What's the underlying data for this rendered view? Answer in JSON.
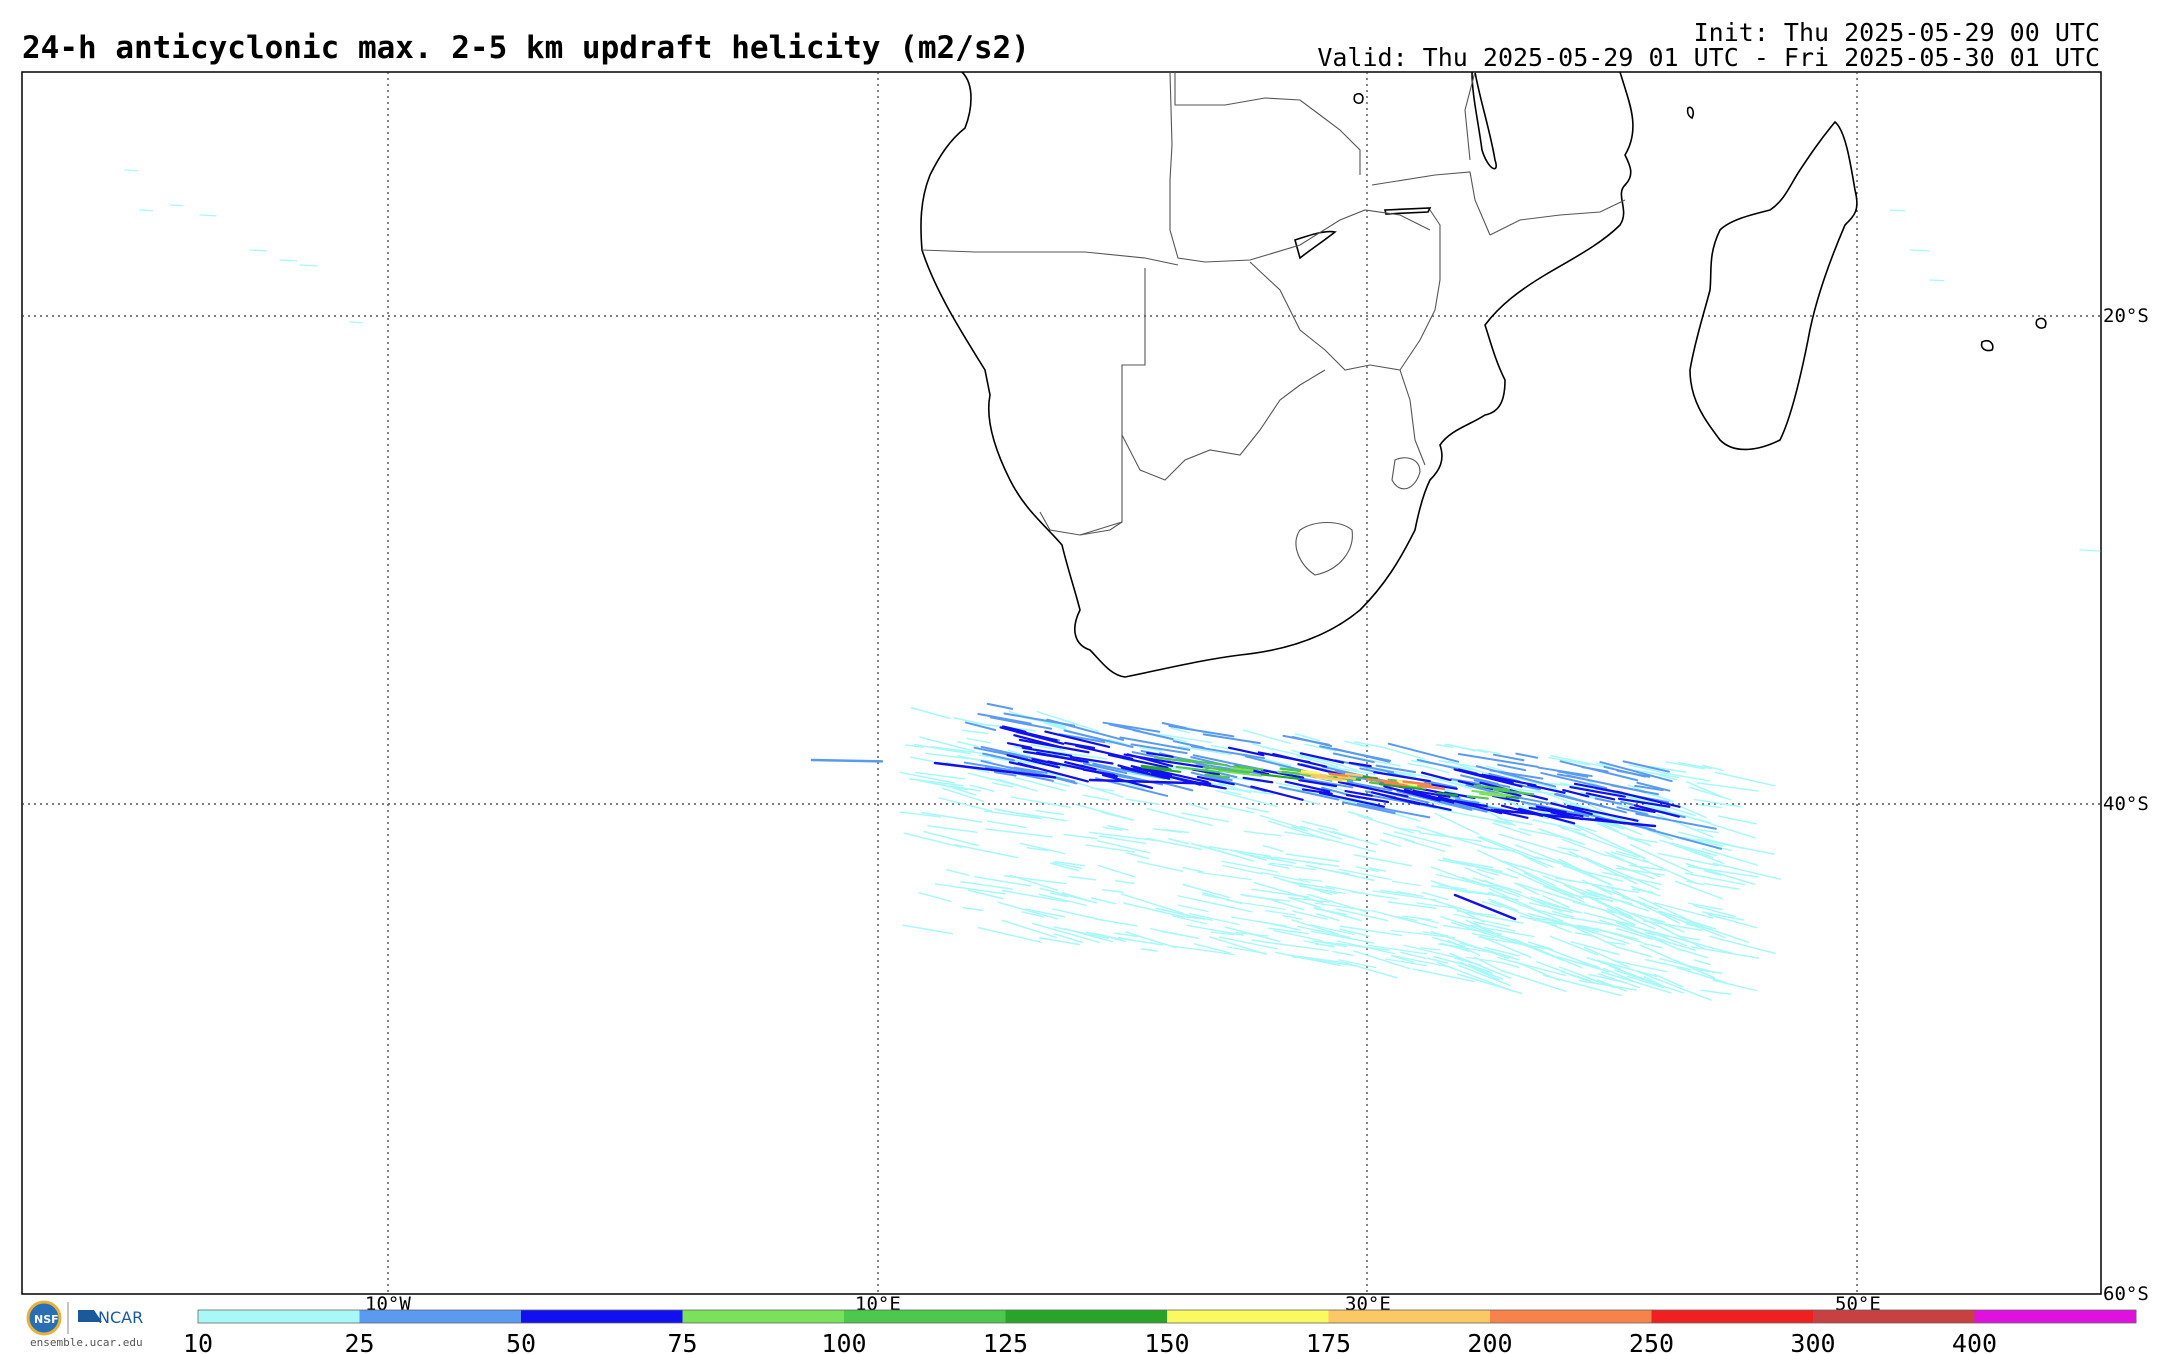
{
  "header": {
    "title": "24-h anticyclonic max. 2-5 km updraft helicity (m2/s2)",
    "init": "Init: Thu 2025-05-29 00 UTC",
    "valid": "Valid: Thu 2025-05-29 01 UTC - Fri 2025-05-30 01 UTC"
  },
  "map": {
    "lat_labels": [
      "20°S",
      "40°S",
      "60°S"
    ],
    "lon_labels": [
      "10°W",
      "10°E",
      "30°E",
      "50°E"
    ],
    "gridlines": "dotted"
  },
  "colorbar": {
    "labels": [
      "10",
      "25",
      "50",
      "75",
      "100",
      "125",
      "150",
      "175",
      "200",
      "250",
      "300",
      "400"
    ],
    "colors": [
      "#a8f8f8",
      "#5a9af0",
      "#1010f0",
      "#7ae25a",
      "#4cc84c",
      "#28a428",
      "#fafa60",
      "#fac864",
      "#f8824a",
      "#f02020",
      "#c84040",
      "#e010e0"
    ]
  },
  "branding": {
    "logo_text": "ensemble.ucar.edu",
    "ncar_label": "NCAR",
    "nsf_label": "NSF"
  }
}
